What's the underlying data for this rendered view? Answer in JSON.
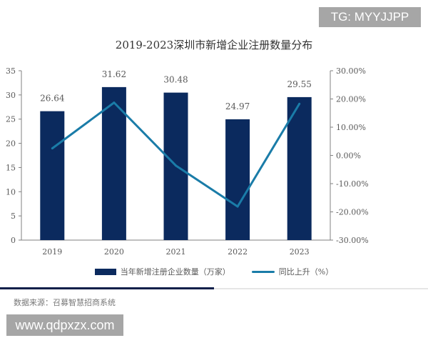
{
  "watermarks": {
    "top": "TG: MYYJJPP",
    "bottom": "www.qdpxzx.com"
  },
  "source": "数据来源：召募智慧招商系统",
  "colors": {
    "bar": "#0b2a5e",
    "line": "#1a7ca8",
    "axis": "#808080"
  },
  "chart_data": {
    "type": "bar+line",
    "title": "2019-2023深圳市新增企业注册数量分布",
    "categories": [
      "2019",
      "2020",
      "2021",
      "2022",
      "2023"
    ],
    "series": [
      {
        "name": "当年新增注册企业数量（万家）",
        "type": "bar",
        "axis": "left",
        "values": [
          26.64,
          31.62,
          30.48,
          24.97,
          29.55
        ],
        "labels": [
          "26.64",
          "31.62",
          "30.48",
          "24.97",
          "29.55"
        ]
      },
      {
        "name": "同比上升（%）",
        "type": "line",
        "axis": "right",
        "values": [
          2.5,
          18.7,
          -3.6,
          -18.1,
          18.3
        ]
      }
    ],
    "left_axis": {
      "ylim": [
        0,
        35
      ],
      "ticks": [
        "0",
        "5",
        "10",
        "15",
        "20",
        "25",
        "30",
        "35"
      ]
    },
    "right_axis": {
      "ylim": [
        -30,
        30
      ],
      "ticks": [
        "-30.00%",
        "-20.00%",
        "-10.00%",
        "0.00%",
        "10.00%",
        "20.00%",
        "30.00%"
      ]
    },
    "grid": false,
    "legend": "bottom"
  }
}
